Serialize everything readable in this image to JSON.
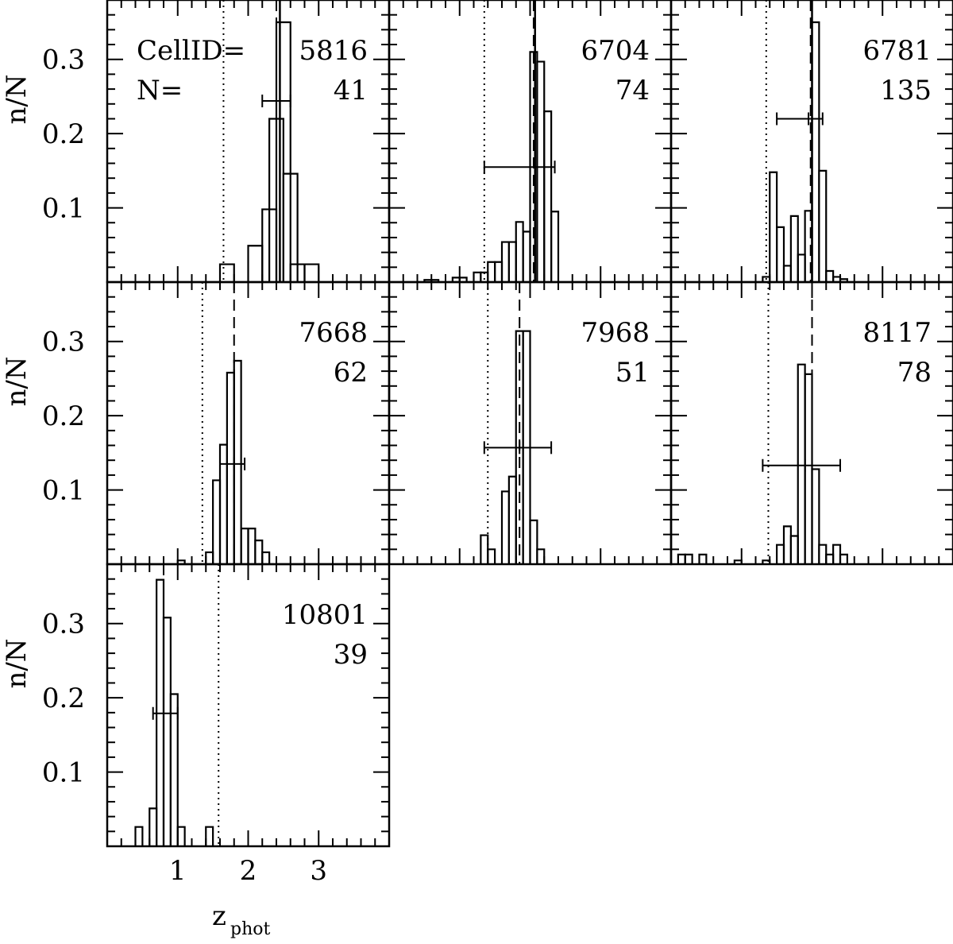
{
  "figure": {
    "y_axis_label": "n/N",
    "x_axis_label_main": "z",
    "x_axis_label_sub": "phot",
    "cellid_prefix": "CellID=",
    "n_prefix": "N="
  },
  "chart_data": [
    {
      "type": "bar",
      "cell_id": "5816",
      "n": "41",
      "xlim": [
        0,
        4
      ],
      "ylim": [
        0,
        0.38
      ],
      "yticks": [
        "0.1",
        "0.2",
        "0.3"
      ],
      "xticks": [],
      "bin_width": 0.2,
      "bins": [
        [
          1.6,
          0.024
        ],
        [
          2.0,
          0.049
        ],
        [
          2.2,
          0.098
        ],
        [
          2.3,
          0.22
        ],
        [
          2.4,
          0.35
        ],
        [
          2.5,
          0.146
        ],
        [
          2.6,
          0.024
        ],
        [
          2.8,
          0.024
        ]
      ],
      "spec_z": 2.45,
      "median": 2.4,
      "dotted": 1.65,
      "error_bar": {
        "center": 2.4,
        "low": 2.2,
        "high": 2.6,
        "y": 0.244
      }
    },
    {
      "type": "bar",
      "cell_id": "6704",
      "n": "74",
      "xlim": [
        0,
        4
      ],
      "ylim": [
        0,
        0.38
      ],
      "yticks": [
        "0.1",
        "0.2",
        "0.3"
      ],
      "xticks": [],
      "bin_width": 0.1,
      "bins": [
        [
          0.5,
          0.003
        ],
        [
          0.6,
          0.003
        ],
        [
          0.9,
          0.006
        ],
        [
          1.0,
          0.006
        ],
        [
          1.2,
          0.013
        ],
        [
          1.3,
          0.013
        ],
        [
          1.4,
          0.027
        ],
        [
          1.5,
          0.027
        ],
        [
          1.6,
          0.054
        ],
        [
          1.7,
          0.054
        ],
        [
          1.8,
          0.081
        ],
        [
          1.9,
          0.068
        ],
        [
          2.0,
          0.31
        ],
        [
          2.1,
          0.297
        ],
        [
          2.2,
          0.23
        ],
        [
          2.3,
          0.095
        ]
      ],
      "spec_z": 2.07,
      "median": 2.05,
      "dotted": 1.35,
      "error_bar": {
        "center": 2.0,
        "low": 1.35,
        "high": 2.35,
        "y": 0.155
      }
    },
    {
      "type": "bar",
      "cell_id": "6781",
      "n": "135",
      "xlim": [
        0,
        4
      ],
      "ylim": [
        0,
        0.38
      ],
      "yticks": [
        "0.1",
        "0.2",
        "0.3"
      ],
      "xticks": [],
      "bin_width": 0.1,
      "bins": [
        [
          1.3,
          0.007
        ],
        [
          1.4,
          0.148
        ],
        [
          1.5,
          0.074
        ],
        [
          1.6,
          0.022
        ],
        [
          1.7,
          0.089
        ],
        [
          1.8,
          0.037
        ],
        [
          1.9,
          0.096
        ],
        [
          2.0,
          0.35
        ],
        [
          2.1,
          0.15
        ],
        [
          2.2,
          0.015
        ],
        [
          2.3,
          0.007
        ],
        [
          2.4,
          0.004
        ]
      ],
      "spec_z": 2.0,
      "median": 1.98,
      "dotted": 1.35,
      "error_bar": {
        "center": 1.95,
        "low": 1.5,
        "high": 2.15,
        "y": 0.22
      }
    },
    {
      "type": "bar",
      "cell_id": "7668",
      "n": "62",
      "xlim": [
        0,
        4
      ],
      "ylim": [
        0,
        0.38
      ],
      "yticks": [
        "0.1",
        "0.2",
        "0.3"
      ],
      "xticks": [],
      "bin_width": 0.1,
      "bins": [
        [
          1.0,
          0.005
        ],
        [
          1.4,
          0.016
        ],
        [
          1.5,
          0.113
        ],
        [
          1.6,
          0.161
        ],
        [
          1.7,
          0.258
        ],
        [
          1.8,
          0.274
        ],
        [
          1.9,
          0.048
        ],
        [
          2.0,
          0.048
        ],
        [
          2.1,
          0.032
        ],
        [
          2.2,
          0.016
        ]
      ],
      "spec_z": null,
      "median": 1.8,
      "dotted": 1.35,
      "error_bar": {
        "center": 1.8,
        "low": 1.6,
        "high": 1.95,
        "y": 0.135
      }
    },
    {
      "type": "bar",
      "cell_id": "7968",
      "n": "51",
      "xlim": [
        0,
        4
      ],
      "ylim": [
        0,
        0.38
      ],
      "yticks": [
        "0.1",
        "0.2",
        "0.3"
      ],
      "xticks": [],
      "bin_width": 0.1,
      "bins": [
        [
          1.3,
          0.039
        ],
        [
          1.4,
          0.02
        ],
        [
          1.6,
          0.098
        ],
        [
          1.7,
          0.118
        ],
        [
          1.8,
          0.314
        ],
        [
          1.9,
          0.314
        ],
        [
          2.0,
          0.059
        ],
        [
          2.1,
          0.02
        ]
      ],
      "spec_z": null,
      "median": 1.85,
      "dotted": 1.4,
      "error_bar": {
        "center": 1.85,
        "low": 1.35,
        "high": 2.3,
        "y": 0.157
      }
    },
    {
      "type": "bar",
      "cell_id": "8117",
      "n": "78",
      "xlim": [
        0,
        4
      ],
      "ylim": [
        0,
        0.38
      ],
      "yticks": [
        "0.1",
        "0.2",
        "0.3"
      ],
      "xticks": [],
      "bin_width": 0.1,
      "bins": [
        [
          0.1,
          0.013
        ],
        [
          0.2,
          0.013
        ],
        [
          0.4,
          0.013
        ],
        [
          0.9,
          0.005
        ],
        [
          1.3,
          0.005
        ],
        [
          1.5,
          0.026
        ],
        [
          1.6,
          0.051
        ],
        [
          1.7,
          0.038
        ],
        [
          1.8,
          0.269
        ],
        [
          1.9,
          0.256
        ],
        [
          2.0,
          0.128
        ],
        [
          2.1,
          0.026
        ],
        [
          2.2,
          0.013
        ],
        [
          2.3,
          0.026
        ],
        [
          2.4,
          0.013
        ]
      ],
      "spec_z": null,
      "median": 2.0,
      "dotted": 1.38,
      "error_bar": {
        "center": 1.9,
        "low": 1.3,
        "high": 2.4,
        "y": 0.133
      }
    },
    {
      "type": "bar",
      "cell_id": "10801",
      "n": "39",
      "xlim": [
        0,
        4
      ],
      "ylim": [
        0,
        0.38
      ],
      "yticks": [
        "0.1",
        "0.2",
        "0.3"
      ],
      "xticks": [
        "1",
        "2",
        "3"
      ],
      "bin_width": 0.1,
      "bins": [
        [
          0.4,
          0.026
        ],
        [
          0.6,
          0.051
        ],
        [
          0.7,
          0.359
        ],
        [
          0.8,
          0.308
        ],
        [
          0.9,
          0.205
        ],
        [
          1.0,
          0.026
        ],
        [
          1.4,
          0.026
        ]
      ],
      "spec_z": null,
      "median": 0.8,
      "dotted": 1.58,
      "error_bar": {
        "center": 0.8,
        "low": 0.65,
        "high": 1.0,
        "y": 0.179
      }
    }
  ]
}
